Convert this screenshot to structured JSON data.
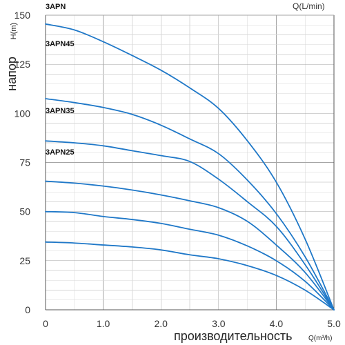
{
  "chart_data": {
    "type": "line",
    "series_group_label": "3APN",
    "top_right_label": "Q(L/min)",
    "ylabel": "напор",
    "ylabel_unit": "H(m)",
    "xlabel": "производительность",
    "xlabel_unit": "Q(m³/h)",
    "xlim": [
      0,
      5
    ],
    "ylim": [
      0,
      150
    ],
    "x_ticks": [
      "0",
      "1.0",
      "2.0",
      "3.0",
      "4.0",
      "5.0"
    ],
    "y_ticks": [
      "0",
      "25",
      "50",
      "75",
      "100",
      "125",
      "150"
    ],
    "grid": true,
    "series": [
      {
        "name": "3APN45",
        "x": [
          0,
          0.5,
          1.0,
          1.5,
          2.0,
          2.5,
          3.0,
          3.5,
          4.0,
          4.5,
          5.0
        ],
        "values": [
          145.5,
          142.5,
          136.5,
          129.5,
          122,
          113,
          102.5,
          86,
          65,
          36,
          0
        ]
      },
      {
        "name": "3APN35",
        "x": [
          0,
          0.5,
          1.0,
          1.5,
          2.0,
          2.5,
          3.0,
          3.5,
          4.0,
          4.5,
          5.0
        ],
        "values": [
          107.5,
          105.5,
          103,
          99.5,
          94,
          87,
          79.5,
          66,
          49,
          27,
          0
        ]
      },
      {
        "name": "3APN25",
        "x": [
          0,
          0.5,
          1.0,
          1.5,
          2.0,
          2.5,
          3.0,
          3.5,
          4.0,
          4.5,
          5.0
        ],
        "values": [
          86,
          85,
          83.5,
          81,
          78.5,
          75.5,
          66.5,
          55,
          42.5,
          23,
          0
        ]
      },
      {
        "name": "",
        "x": [
          0,
          0.5,
          1.0,
          1.5,
          2.0,
          2.5,
          3.0,
          3.5,
          4.0,
          4.5,
          5.0
        ],
        "values": [
          65.5,
          64.5,
          63,
          61,
          58.5,
          55.5,
          52,
          45,
          33,
          19,
          0
        ]
      },
      {
        "name": "",
        "x": [
          0,
          0.5,
          1.0,
          1.5,
          2.0,
          2.5,
          3.0,
          3.5,
          4.0,
          4.5,
          5.0
        ],
        "values": [
          50,
          49.5,
          47.5,
          46,
          44,
          41,
          38,
          32.5,
          25,
          14.5,
          0
        ]
      },
      {
        "name": "",
        "x": [
          0,
          0.5,
          1.0,
          1.5,
          2.0,
          2.5,
          3.0,
          3.5,
          4.0,
          4.5,
          5.0
        ],
        "values": [
          34.5,
          34,
          33,
          32,
          30.5,
          28,
          26,
          22.5,
          17.5,
          10,
          0
        ]
      }
    ],
    "colors": {
      "curve": "#1f78c8",
      "grid": "#a6a6a6",
      "axis": "#555555",
      "text": "#333333"
    }
  }
}
